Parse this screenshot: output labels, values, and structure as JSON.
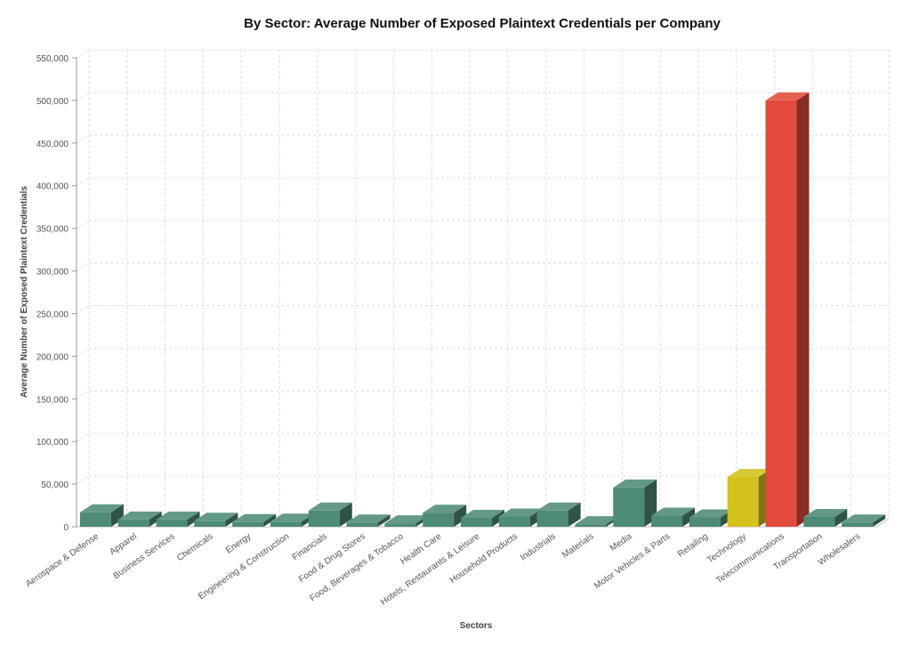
{
  "chart_data": {
    "type": "bar",
    "title": "By Sector: Average Number of Exposed Plaintext Credentials per Company",
    "xlabel": "Sectors",
    "ylabel": "Average Number of Exposed Plaintext Credentials",
    "ylim": [
      0,
      550000
    ],
    "yticks": [
      0,
      50000,
      100000,
      150000,
      200000,
      250000,
      300000,
      350000,
      400000,
      450000,
      500000,
      550000
    ],
    "grid": true,
    "style": "3d-bar",
    "categories": [
      "Aerospace & Defense",
      "Apparel",
      "Business Services",
      "Chemicals",
      "Energy",
      "Engineering & Construction",
      "Financials",
      "Food & Drug Stores",
      "Food, Beverages & Tobacco",
      "Health Care",
      "Hotels, Restaurants & Leisure",
      "Household Products",
      "Industrials",
      "Materials",
      "Media",
      "Motor Vehicles & Parts",
      "Retailing",
      "Technology",
      "Telecommunications",
      "Transportation",
      "Wholesalers"
    ],
    "values": [
      17000,
      8500,
      8500,
      7000,
      5500,
      6000,
      19000,
      5000,
      4000,
      16500,
      10500,
      12000,
      19000,
      3000,
      46000,
      13000,
      11000,
      58500,
      500000,
      11500,
      5000
    ],
    "colors": {
      "default": "#4e8b74",
      "Technology": "#d4c21f",
      "Telecommunications": "#e24b3b"
    }
  }
}
